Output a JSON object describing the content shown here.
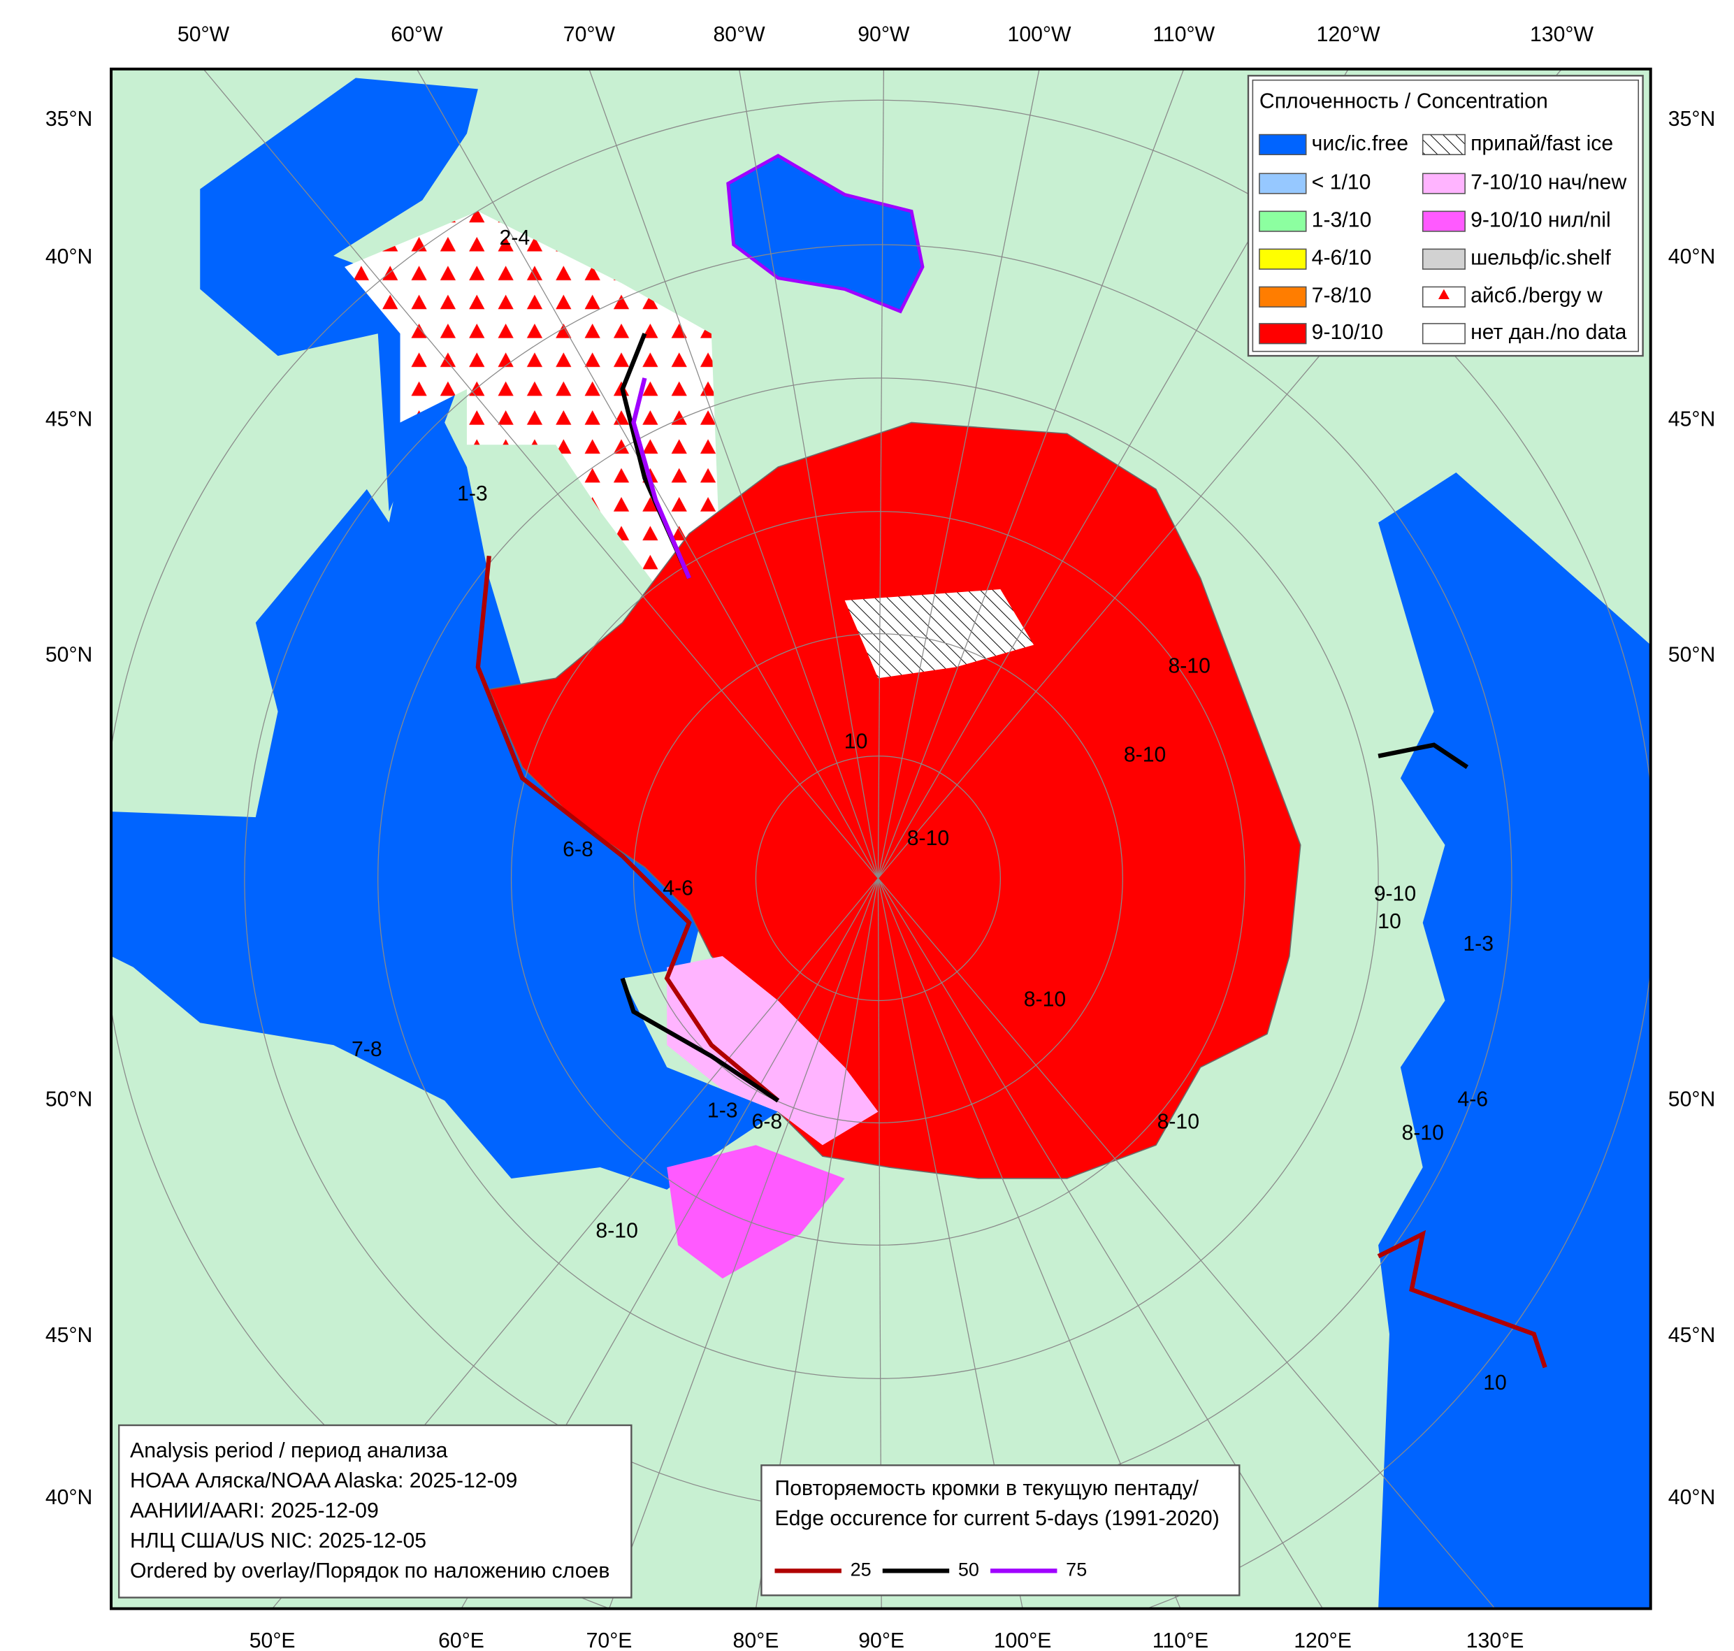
{
  "frame": {
    "top_labels": [
      "50°W",
      "60°W",
      "70°W",
      "80°W",
      "90°W",
      "100°W",
      "110°W",
      "120°W",
      "130°W"
    ],
    "bottom_labels": [
      "50°E",
      "60°E",
      "70°E",
      "80°E",
      "90°E",
      "100°E",
      "110°E",
      "120°E",
      "130°E"
    ],
    "left_labels": [
      "35°N",
      "40°N",
      "45°N",
      "50°N",
      "50°N",
      "45°N",
      "40°N"
    ],
    "right_labels": [
      "35°N",
      "40°N",
      "45°N",
      "50°N",
      "50°N",
      "45°N",
      "40°N"
    ]
  },
  "legend": {
    "title": "Сплоченность / Concentration",
    "items": [
      {
        "label": "чис/ic.free",
        "color": "#0064ff"
      },
      {
        "label": "< 1/10",
        "color": "#96c8ff"
      },
      {
        "label": "1-3/10",
        "color": "#8cffa0"
      },
      {
        "label": "4-6/10",
        "color": "#ffff00"
      },
      {
        "label": "7-8/10",
        "color": "#ff7d00"
      },
      {
        "label": "9-10/10",
        "color": "#ff0000"
      },
      {
        "label": "припай/fast ice",
        "color": "#ffffff",
        "pattern": "hatch"
      },
      {
        "label": "7-10/10 нач/new",
        "color": "#ffb4ff"
      },
      {
        "label": "9-10/10 нил/nil",
        "color": "#ff5aff"
      },
      {
        "label": "шельф/ic.shelf",
        "color": "#d2d2d2"
      },
      {
        "label": "айсб./bergy w",
        "color": "#ffffff",
        "pattern": "triangle"
      },
      {
        "label": "нет дан./no data",
        "color": "#ffffff"
      }
    ]
  },
  "info": {
    "lines": [
      "Analysis period / период анализа",
      "НОАА Аляска/NOAA Alaska: 2025-12-09",
      "ААНИИ/AARI: 2025-12-09",
      "НЛЦ США/US NIC: 2025-12-05",
      "Ordered by overlay/Порядок по наложению слоев"
    ]
  },
  "edge_legend": {
    "title_lines": [
      "Повторяемость кромки в текущую пентаду/",
      "Edge occurence for current 5-days (1991-2020)"
    ],
    "items": [
      {
        "label": "25",
        "color": "#b00000"
      },
      {
        "label": "50",
        "color": "#000000"
      },
      {
        "label": "75",
        "color": "#a000ff"
      }
    ]
  },
  "ice_labels": [
    "8-10",
    "10",
    "2-4",
    "1-3",
    "4-6",
    "6-8",
    "8-10",
    "8-10",
    "8-10",
    "1-3",
    "9-10",
    "7-8",
    "4-6",
    "6-8",
    "10",
    "8-10",
    "8-10",
    "1-3",
    "10",
    "8-10"
  ]
}
